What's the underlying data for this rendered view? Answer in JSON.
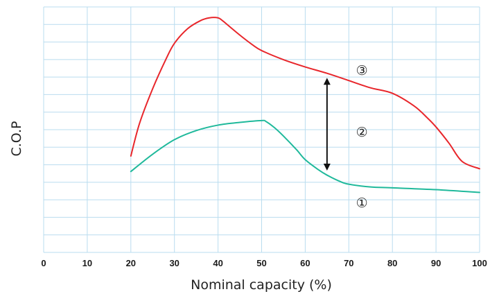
{
  "chart_data": {
    "type": "line",
    "xlabel": "Nominal capacity (%)",
    "ylabel": "C.O.P",
    "xlim": [
      0,
      100
    ],
    "ylim": [
      0,
      13.5
    ],
    "x_ticks": [
      "0",
      "10",
      "20",
      "30",
      "40",
      "50",
      "60",
      "70",
      "80",
      "90",
      "100"
    ],
    "grid": true,
    "y_tick_labels_shown": false,
    "series": [
      {
        "color": "#e8262b",
        "x": [
          20,
          22,
          25,
          28,
          30,
          33,
          36,
          38,
          40,
          41,
          42,
          45,
          48,
          50,
          55,
          60,
          65,
          70,
          75,
          80,
          85,
          88,
          90,
          93,
          96,
          100
        ],
        "y": [
          5.3,
          7.1,
          9.0,
          10.6,
          11.5,
          12.3,
          12.75,
          12.9,
          12.9,
          12.75,
          12.55,
          11.95,
          11.4,
          11.1,
          10.6,
          10.2,
          9.85,
          9.45,
          9.05,
          8.75,
          8.05,
          7.4,
          6.9,
          6.0,
          5.0,
          4.6
        ]
      },
      {
        "color": "#1fb99b",
        "x": [
          20,
          25,
          30,
          35,
          40,
          45,
          50,
          51,
          53,
          55,
          58,
          60,
          63,
          65,
          68,
          70,
          75,
          80,
          90,
          100
        ],
        "y": [
          4.45,
          5.4,
          6.2,
          6.7,
          7.0,
          7.15,
          7.25,
          7.2,
          6.85,
          6.4,
          5.65,
          5.1,
          4.55,
          4.25,
          3.9,
          3.75,
          3.6,
          3.55,
          3.45,
          3.3
        ]
      }
    ],
    "annotations": [
      {
        "label": "①",
        "x": 73,
        "y": 2.7
      },
      {
        "label": "②",
        "x": 73,
        "y": 6.6
      },
      {
        "label": "③",
        "x": 73,
        "y": 10.0
      }
    ],
    "arrow": {
      "x": 65,
      "y_from": 4.5,
      "y_to": 9.6,
      "double_headed": true
    }
  }
}
